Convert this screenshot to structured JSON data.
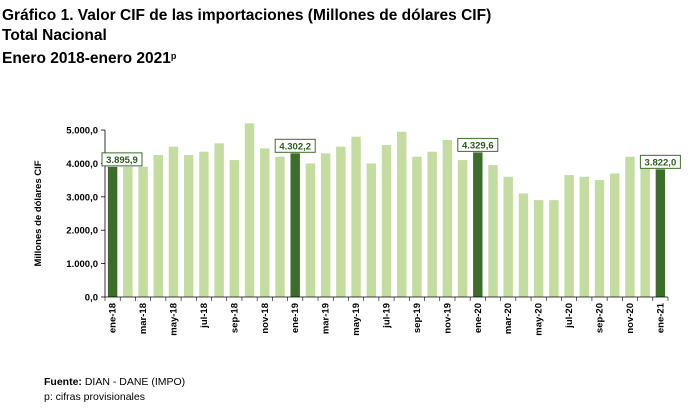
{
  "title_line1": "Gráfico 1. Valor CIF de las importaciones (Millones de dólares CIF)",
  "title_line2": "Total Nacional",
  "title_line3": "Enero 2018-enero 2021",
  "title_sup": "p",
  "footer": {
    "source_label": "Fuente:",
    "source_text": " DIAN - DANE (IMPO)",
    "note": "p: cifras provisionales"
  },
  "colors": {
    "bar": "#c4dca0",
    "highlight": "#3d6d2a",
    "label_border": "#3d6d2a",
    "label_text": "#2e5a1e"
  },
  "chart_data": {
    "type": "bar",
    "ylabel": "Millones de dólares CIF",
    "xlabel": "",
    "ylim": [
      0,
      5000
    ],
    "yticks": [
      "0,0",
      "1.000,0",
      "2.000,0",
      "3.000,0",
      "4.000,0",
      "5.000,0"
    ],
    "grid": false,
    "categories": [
      "ene-18",
      "feb-18",
      "mar-18",
      "abr-18",
      "may-18",
      "jun-18",
      "jul-18",
      "ago-18",
      "sep-18",
      "oct-18",
      "nov-18",
      "dic-18",
      "ene-19",
      "feb-19",
      "mar-19",
      "abr-19",
      "may-19",
      "jun-19",
      "jul-19",
      "ago-19",
      "sep-19",
      "oct-19",
      "nov-19",
      "dic-19",
      "ene-20",
      "feb-20",
      "mar-20",
      "abr-20",
      "may-20",
      "jun-20",
      "jul-20",
      "ago-20",
      "sep-20",
      "oct-20",
      "nov-20",
      "dic-20",
      "ene-21"
    ],
    "x_tick_labels": [
      "ene-18",
      "mar-18",
      "may-18",
      "jul-18",
      "sep-18",
      "nov-18",
      "ene-19",
      "mar-19",
      "may-19",
      "jul-19",
      "sep-19",
      "nov-19",
      "ene-20",
      "mar-20",
      "may-20",
      "jul-20",
      "sep-20",
      "nov-20",
      "ene-21"
    ],
    "values": [
      3895.9,
      3900,
      3900,
      4250,
      4500,
      4250,
      4350,
      4600,
      4100,
      5200,
      4450,
      4200,
      4302.2,
      4000,
      4300,
      4500,
      4800,
      4000,
      4550,
      4950,
      4200,
      4350,
      4700,
      4100,
      4329.6,
      3950,
      3600,
      3100,
      2900,
      2900,
      3650,
      3600,
      3500,
      3700,
      4200,
      4200,
      3822.0
    ],
    "highlight_indices": [
      0,
      12,
      24,
      36
    ],
    "data_labels": [
      {
        "index": 0,
        "text": "3.895,9"
      },
      {
        "index": 12,
        "text": "4.302,2"
      },
      {
        "index": 24,
        "text": "4.329,6"
      },
      {
        "index": 36,
        "text": "3.822,0"
      }
    ]
  }
}
